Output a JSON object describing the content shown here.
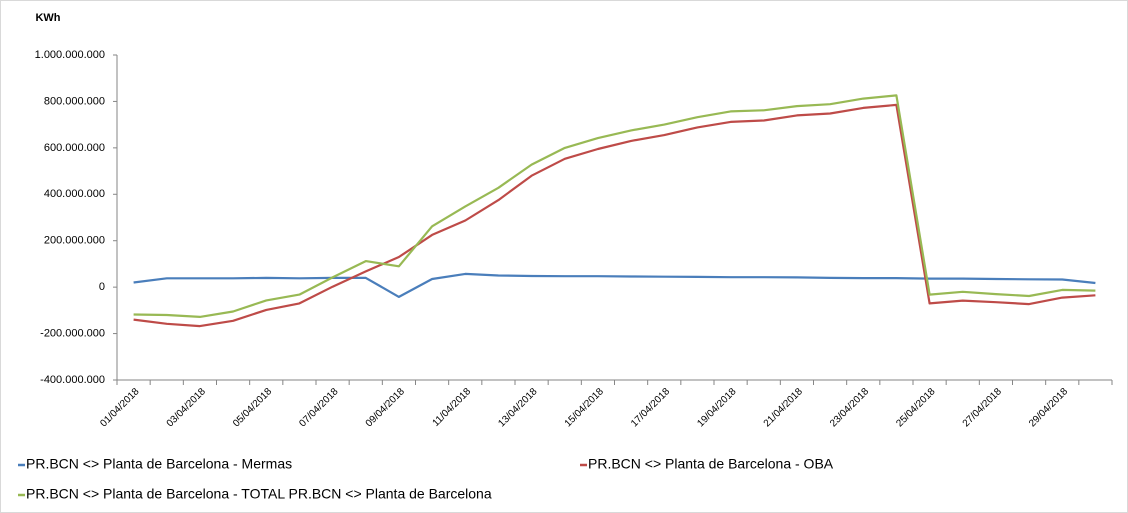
{
  "chart_data": {
    "type": "line",
    "y_label": "KWh",
    "categories": [
      "01/04/2018",
      null,
      "03/04/2018",
      null,
      "05/04/2018",
      null,
      "07/04/2018",
      null,
      "09/04/2018",
      null,
      "11/04/2018",
      null,
      "13/04/2018",
      null,
      "15/04/2018",
      null,
      "17/04/2018",
      null,
      "19/04/2018",
      null,
      "21/04/2018",
      null,
      "23/04/2018",
      null,
      "25/04/2018",
      null,
      "27/04/2018",
      null,
      "29/04/2018",
      null
    ],
    "series": [
      {
        "name": "PR.BCN <> Planta de Barcelona - Mermas",
        "color": "#4a7ebb",
        "values": [
          20000000,
          38000000,
          38000000,
          38000000,
          40000000,
          38000000,
          40000000,
          40000000,
          -42000000,
          35000000,
          57000000,
          50000000,
          48000000,
          47000000,
          47000000,
          46000000,
          45000000,
          44000000,
          43000000,
          43000000,
          42000000,
          40000000,
          39000000,
          39000000,
          37000000,
          37000000,
          35000000,
          34000000,
          33000000,
          18000000
        ]
      },
      {
        "name": "PR.BCN <> Planta de Barcelona - OBA",
        "color": "#be4b48",
        "values": [
          -140000000,
          -158000000,
          -168000000,
          -145000000,
          -98000000,
          -70000000,
          2000000,
          68000000,
          130000000,
          225000000,
          287000000,
          375000000,
          480000000,
          553000000,
          595000000,
          630000000,
          655000000,
          688000000,
          712000000,
          718000000,
          740000000,
          748000000,
          772000000,
          785000000,
          -70000000,
          -58000000,
          -65000000,
          -73000000,
          -45000000,
          -35000000
        ]
      },
      {
        "name": "PR.BCN <> Planta de Barcelona - TOTAL PR.BCN <> Planta de Barcelona",
        "color": "#98b954",
        "values": [
          -118000000,
          -120000000,
          -128000000,
          -105000000,
          -57000000,
          -32000000,
          42000000,
          112000000,
          90000000,
          262000000,
          348000000,
          428000000,
          528000000,
          600000000,
          642000000,
          675000000,
          700000000,
          732000000,
          757000000,
          762000000,
          780000000,
          788000000,
          812000000,
          826000000,
          -32000000,
          -20000000,
          -30000000,
          -38000000,
          -12000000,
          -15000000
        ]
      }
    ],
    "ylim": [
      -400000000,
      1000000000
    ],
    "yticks": [
      {
        "value": -400000000,
        "label": "-400.000.000"
      },
      {
        "value": -200000000,
        "label": "-200.000.000"
      },
      0,
      {
        "value": 200000000,
        "label": "200.000.000"
      },
      {
        "value": 400000000,
        "label": "400.000.000"
      },
      {
        "value": 600000000,
        "label": "600.000.000"
      },
      {
        "value": 800000000,
        "label": "800.000.000"
      },
      {
        "value": 1000000000,
        "label": "1.000.000.000"
      }
    ],
    "grid": false,
    "legend": "bottom"
  }
}
